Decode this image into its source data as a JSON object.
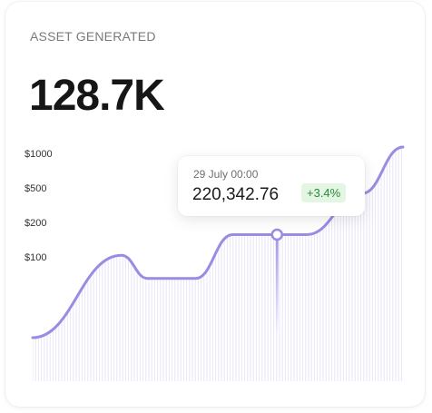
{
  "widget": {
    "title": "ASSET GENERATED",
    "total": "128.7K"
  },
  "tooltip": {
    "date": "29 July 00:00",
    "value": "220,342.76",
    "change": "+3.4%"
  },
  "colors": {
    "line": "#9a8ce3",
    "hatch": "#e8e5f7",
    "badge_bg": "#e3f5e3",
    "badge_text": "#2b8a3a"
  },
  "chart_data": {
    "type": "area",
    "y_tick_labels": [
      "$1000",
      "$500",
      "$200",
      "$100"
    ],
    "points": [
      {
        "x": 0,
        "y": 0.26
      },
      {
        "x": 0.24,
        "y": 0.58
      },
      {
        "x": 0.31,
        "y": 0.49
      },
      {
        "x": 0.44,
        "y": 0.49
      },
      {
        "x": 0.54,
        "y": 0.66
      },
      {
        "x": 0.66,
        "y": 0.66
      },
      {
        "x": 0.74,
        "y": 0.66
      },
      {
        "x": 0.89,
        "y": 0.82
      },
      {
        "x": 1.0,
        "y": 1.0
      }
    ],
    "highlight_index": 5
  }
}
